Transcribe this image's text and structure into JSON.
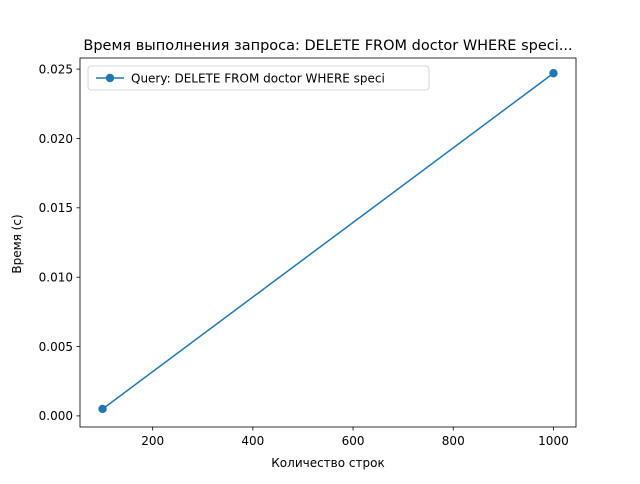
{
  "chart_data": {
    "type": "line",
    "title": "Время выполнения запроса: DELETE FROM doctor WHERE speci...",
    "xlabel": "Количество строк",
    "ylabel": "Время (с)",
    "xlim": [
      55,
      1045
    ],
    "ylim": [
      -0.0008,
      0.0258
    ],
    "xticks": [
      200,
      400,
      600,
      800,
      1000
    ],
    "xtick_labels": [
      "200",
      "400",
      "600",
      "800",
      "1000"
    ],
    "yticks": [
      0.0,
      0.005,
      0.01,
      0.015,
      0.02,
      0.025
    ],
    "ytick_labels": [
      "0.000",
      "0.005",
      "0.010",
      "0.015",
      "0.020",
      "0.025"
    ],
    "grid": false,
    "legend_position": "upper left",
    "series": [
      {
        "name": "Query: DELETE FROM doctor WHERE speci",
        "color": "#1f77b4",
        "marker": "circle",
        "x": [
          100,
          1000
        ],
        "y": [
          0.0005,
          0.0247
        ]
      }
    ]
  }
}
